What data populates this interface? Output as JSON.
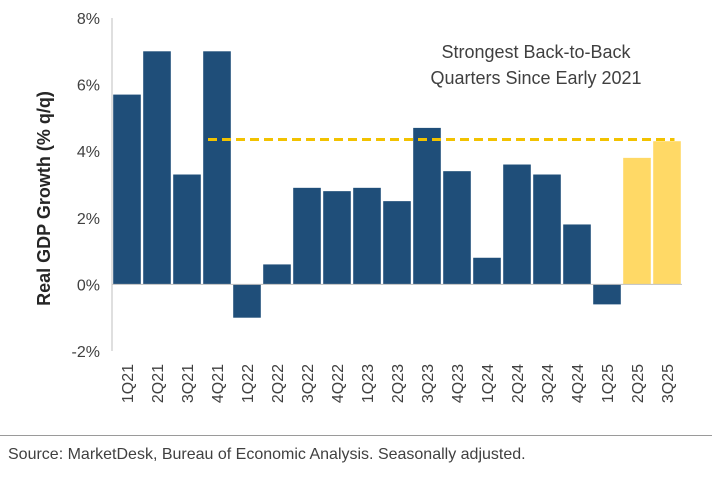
{
  "chart_data": {
    "type": "bar",
    "title": "",
    "xlabel": "",
    "ylabel": "Real GDP Growth (% q/q)",
    "ylim": [
      -2,
      8
    ],
    "yticks": [
      -2,
      0,
      2,
      4,
      6,
      8
    ],
    "ytick_suffix": "%",
    "grid": false,
    "categories": [
      "1Q21",
      "2Q21",
      "3Q21",
      "4Q21",
      "1Q22",
      "2Q22",
      "3Q22",
      "4Q22",
      "1Q23",
      "2Q23",
      "3Q23",
      "4Q23",
      "1Q24",
      "2Q24",
      "3Q24",
      "4Q24",
      "1Q25",
      "2Q25",
      "3Q25"
    ],
    "values": [
      5.7,
      7.0,
      3.3,
      7.0,
      -1.0,
      0.6,
      2.9,
      2.8,
      2.9,
      2.5,
      4.7,
      3.4,
      0.8,
      3.6,
      3.3,
      1.8,
      -0.6,
      3.8,
      4.3
    ],
    "highlight_categories": [
      "2Q25",
      "3Q25"
    ],
    "colors": {
      "default": "#1F4E79",
      "highlight": "#FFD966",
      "reference_line": "#F2C200"
    },
    "reference_line": {
      "value": 4.35,
      "from_category": "4Q21",
      "to_category": "3Q25",
      "style": "dashed"
    },
    "annotation": {
      "lines": [
        "Strongest Back-to-Back",
        "Quarters Since Early 2021"
      ]
    }
  },
  "footer": {
    "source": "Source: MarketDesk, Bureau of Economic Analysis. Seasonally adjusted."
  }
}
